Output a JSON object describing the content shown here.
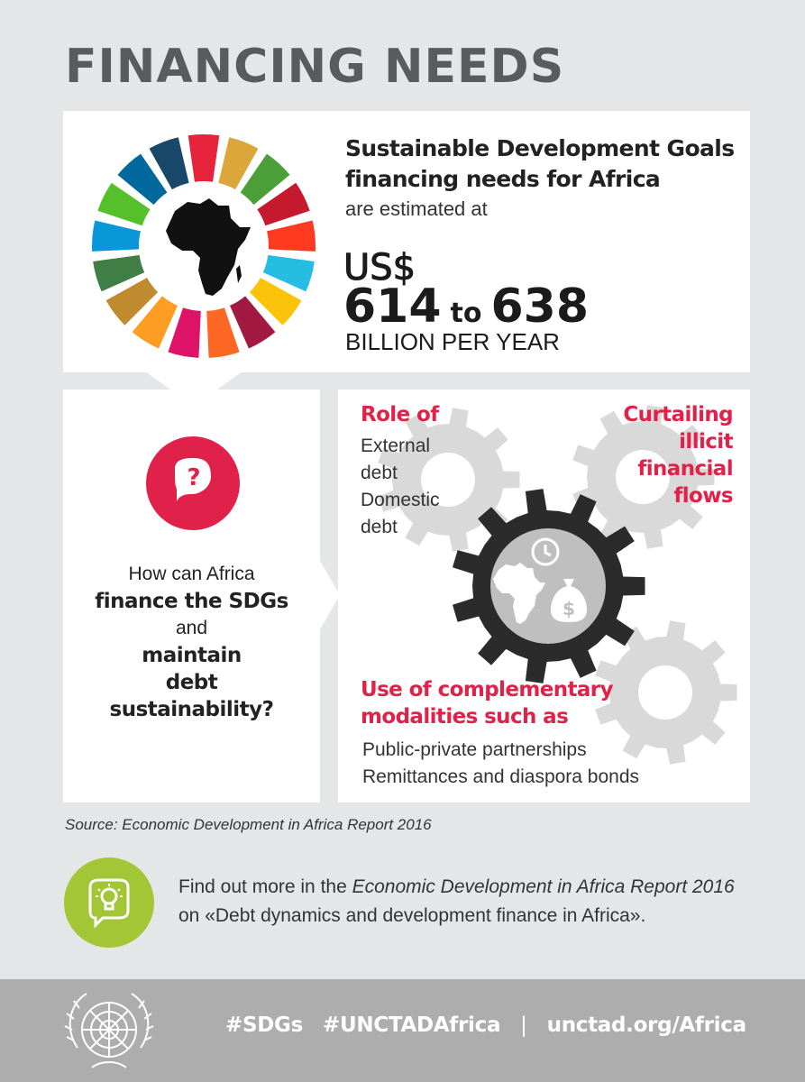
{
  "title": "FINANCING NEEDS",
  "top": {
    "heading_line1": "Sustainable Development Goals",
    "heading_line2": "financing needs for Africa",
    "sub": "are estimated at",
    "currency": "US$",
    "low": "614",
    "to": "to",
    "high": "638",
    "unit": "BILLION PER YEAR"
  },
  "question": {
    "line1": "How can Africa",
    "line2": "finance the SDGs",
    "line3": "and",
    "line4": "maintain",
    "line5": "debt",
    "line6": "sustainability?"
  },
  "role": {
    "heading": "Role of",
    "items": [
      "External",
      "debt",
      "Domestic",
      "debt"
    ]
  },
  "curtailing": {
    "lines": [
      "Curtailing",
      "illicit",
      "financial",
      "flows"
    ]
  },
  "modalities": {
    "heading_line1": "Use of complementary",
    "heading_line2": "modalities such as",
    "items": [
      "Public-private partnerships",
      "Remittances and diaspora bonds"
    ]
  },
  "source": "Source: Economic Development in Africa Report 2016",
  "find_more": {
    "prefix": "Find out more in the ",
    "report": "Economic Development in Africa Report 2016",
    "line2": "on «Debt dynamics and development finance in Africa»."
  },
  "footer": {
    "tag1": "#SDGs",
    "tag2": "#UNCTADAfrica",
    "separator": "|",
    "url": "unctad.org/Africa"
  },
  "colors": {
    "background": "#e5e6e8",
    "accent_red": "#e0224a",
    "footer": "#adadad",
    "bulb_green": "#a3c636",
    "gear_dark": "#2b2b2b",
    "gear_light": "#d9d9d9"
  },
  "icons": [
    "sdg-wheel-icon",
    "africa-map-icon",
    "question-bubble-icon",
    "gear-icon",
    "clock-icon",
    "money-bag-icon",
    "lightbulb-bubble-icon",
    "un-emblem-icon"
  ]
}
